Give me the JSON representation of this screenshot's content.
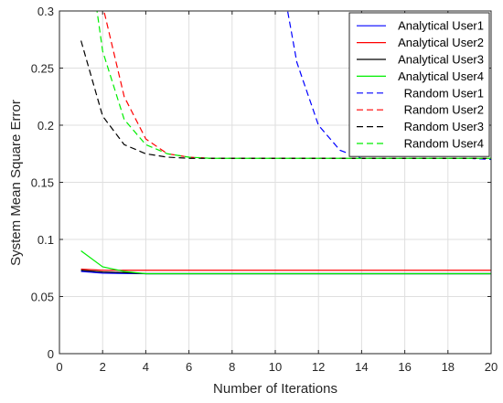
{
  "chart_data": {
    "type": "line",
    "title": "",
    "xlabel": "Number of Iterations",
    "ylabel": "System Mean Square Error",
    "xlim": [
      0,
      20
    ],
    "ylim": [
      0,
      0.3
    ],
    "xticks": [
      0,
      2,
      4,
      6,
      8,
      10,
      12,
      14,
      16,
      18,
      20
    ],
    "yticks": [
      0,
      0.05,
      0.1,
      0.15,
      0.2,
      0.25,
      0.3
    ],
    "xtick_labels": [
      "0",
      "2",
      "4",
      "6",
      "8",
      "10",
      "12",
      "14",
      "16",
      "18",
      "20"
    ],
    "ytick_labels": [
      "0",
      "0.05",
      "0.1",
      "0.15",
      "0.2",
      "0.25",
      "0.3"
    ],
    "grid": true,
    "legend_position": "top-right",
    "x": [
      1,
      2,
      3,
      4,
      5,
      6,
      7,
      8,
      9,
      10,
      11,
      12,
      13,
      14,
      15,
      16,
      17,
      18,
      19,
      20
    ],
    "series": [
      {
        "name": "Analytical User1",
        "color": "#0000ff",
        "dash": "solid",
        "values": [
          0.072,
          0.0705,
          0.0702,
          0.07,
          0.07,
          0.07,
          0.07,
          0.07,
          0.07,
          0.07,
          0.07,
          0.07,
          0.07,
          0.07,
          0.07,
          0.07,
          0.07,
          0.07,
          0.07,
          0.07
        ]
      },
      {
        "name": "Analytical User2",
        "color": "#ff0000",
        "dash": "solid",
        "values": [
          0.074,
          0.073,
          0.073,
          0.073,
          0.073,
          0.073,
          0.073,
          0.073,
          0.073,
          0.073,
          0.073,
          0.073,
          0.073,
          0.073,
          0.073,
          0.073,
          0.073,
          0.073,
          0.073,
          0.073
        ]
      },
      {
        "name": "Analytical User3",
        "color": "#000000",
        "dash": "solid",
        "values": [
          0.073,
          0.0715,
          0.071,
          0.07,
          0.07,
          0.07,
          0.07,
          0.07,
          0.07,
          0.07,
          0.07,
          0.07,
          0.07,
          0.07,
          0.07,
          0.07,
          0.07,
          0.07,
          0.07,
          0.07
        ]
      },
      {
        "name": "Analytical User4",
        "color": "#00ee00",
        "dash": "solid",
        "values": [
          0.09,
          0.076,
          0.072,
          0.07,
          0.07,
          0.07,
          0.07,
          0.07,
          0.07,
          0.07,
          0.07,
          0.07,
          0.07,
          0.07,
          0.07,
          0.07,
          0.07,
          0.07,
          0.07,
          0.07
        ]
      },
      {
        "name": "Random User1",
        "color": "#0000ff",
        "dash": "dashed",
        "values": [
          null,
          null,
          null,
          null,
          null,
          null,
          null,
          null,
          null,
          0.36,
          0.255,
          0.2,
          0.178,
          0.171,
          0.171,
          0.171,
          0.171,
          0.171,
          0.171,
          0.17
        ]
      },
      {
        "name": "Random User2",
        "color": "#ff0000",
        "dash": "dashed",
        "values": [
          0.42,
          0.305,
          0.225,
          0.188,
          0.175,
          0.172,
          0.171,
          0.171,
          0.171,
          0.171,
          0.171,
          0.171,
          0.171,
          0.171,
          0.171,
          0.171,
          0.171,
          0.171,
          0.171,
          0.171
        ]
      },
      {
        "name": "Random User3",
        "color": "#000000",
        "dash": "dashed",
        "values": [
          0.274,
          0.208,
          0.183,
          0.175,
          0.172,
          0.171,
          0.171,
          0.171,
          0.171,
          0.171,
          0.171,
          0.171,
          0.171,
          0.171,
          0.171,
          0.171,
          0.171,
          0.171,
          0.171,
          0.171
        ]
      },
      {
        "name": "Random User4",
        "color": "#00ee00",
        "dash": "dashed",
        "values": [
          0.4,
          0.265,
          0.205,
          0.183,
          0.175,
          0.172,
          0.171,
          0.171,
          0.171,
          0.171,
          0.171,
          0.171,
          0.171,
          0.171,
          0.171,
          0.171,
          0.171,
          0.171,
          0.171,
          0.171
        ]
      }
    ]
  }
}
